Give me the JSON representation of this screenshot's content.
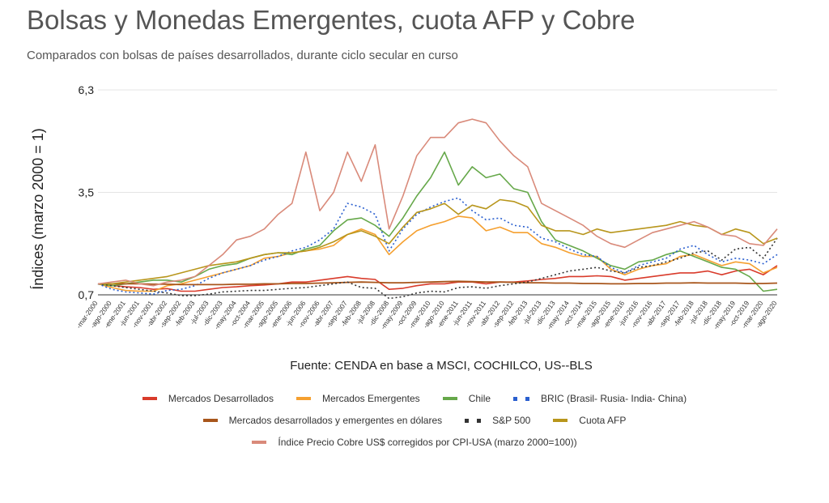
{
  "title": "Bolsas y Monedas Emergentes, cuota AFP y Cobre",
  "subtitle": "Comparados con bolsas de países desarrollados, durante ciclo secular en curso",
  "source": "Fuente: CENDA en base a MSCI, COCHILCO, US--BLS",
  "chart_data": {
    "type": "line",
    "ylabel": "Índices (marzo 2000 = 1)",
    "xlabel": "",
    "ylim": [
      0.7,
      6.3
    ],
    "yticks": [
      "0,7",
      "3,5",
      "6,3"
    ],
    "ytick_values": [
      0.7,
      3.5,
      6.3
    ],
    "grid": true,
    "legend_position": "bottom",
    "x_tick_labels": [
      "-mar-2000",
      "-ago-2000",
      "-ene-2001",
      "-jun-2001",
      "-nov-2001",
      "-abr-2002",
      "-sep-2002",
      "-feb-2003",
      "-jul-2003",
      "-dic-2003",
      "-may-2004",
      "-oct-2004",
      "-mar-2005",
      "-ago-2005",
      "-ene-2006",
      "-jun-2006",
      "-nov-2006",
      "-abr-2007",
      "-sep-2007",
      "-feb-2008",
      "-jul-2008",
      "-dic-2008",
      "-may-2009",
      "-oct-2009",
      "-mar-2010",
      "-ago-2010",
      "-ene-2011",
      "-jun-2011",
      "-nov-2011",
      "-abr-2012",
      "-sep-2012",
      "-feb-2013",
      "-jul-2013",
      "-dic-2013",
      "-may-2014",
      "-oct-2014",
      "-mar-2015",
      "-ago-2015",
      "-ene-2016",
      "-jun-2016",
      "-nov-2016",
      "-abr-2017",
      "-sep-2017",
      "-feb-2018",
      "-jul-2018",
      "-dic-2018",
      "-may-2019",
      "-oct-2019",
      "-mar-2020",
      "-ago-2020"
    ],
    "series": [
      {
        "name": "Mercados Desarrollados",
        "color": "#d93b2b",
        "style": "solid",
        "width": 1.6,
        "values": [
          1.0,
          0.96,
          0.92,
          0.9,
          0.85,
          0.87,
          0.8,
          0.8,
          0.85,
          0.9,
          0.92,
          0.95,
          0.97,
          1.0,
          1.05,
          1.05,
          1.1,
          1.15,
          1.2,
          1.15,
          1.12,
          0.85,
          0.88,
          0.95,
          1.0,
          1.0,
          1.05,
          1.05,
          1.0,
          1.05,
          1.05,
          1.08,
          1.12,
          1.15,
          1.2,
          1.2,
          1.22,
          1.2,
          1.1,
          1.15,
          1.2,
          1.25,
          1.3,
          1.3,
          1.35,
          1.25,
          1.35,
          1.4,
          1.25,
          1.5
        ]
      },
      {
        "name": "Mercados Emergentes",
        "color": "#f5a030",
        "style": "solid",
        "width": 1.6,
        "values": [
          1.0,
          0.9,
          0.82,
          0.8,
          0.8,
          0.95,
          1.0,
          1.1,
          1.2,
          1.3,
          1.4,
          1.5,
          1.7,
          1.75,
          1.85,
          1.9,
          1.95,
          2.05,
          2.35,
          2.5,
          2.35,
          1.8,
          2.15,
          2.45,
          2.6,
          2.7,
          2.85,
          2.8,
          2.45,
          2.55,
          2.4,
          2.4,
          2.1,
          2.0,
          1.85,
          1.75,
          1.75,
          1.4,
          1.25,
          1.4,
          1.5,
          1.55,
          1.75,
          1.8,
          1.65,
          1.5,
          1.6,
          1.55,
          1.3,
          1.45
        ]
      },
      {
        "name": "Chile",
        "color": "#66a84a",
        "style": "solid",
        "width": 1.6,
        "values": [
          1.0,
          0.95,
          1.0,
          1.05,
          1.1,
          1.1,
          1.05,
          1.2,
          1.4,
          1.5,
          1.55,
          1.7,
          1.8,
          1.85,
          1.8,
          1.95,
          2.05,
          2.45,
          2.75,
          2.8,
          2.6,
          2.3,
          2.8,
          3.4,
          3.9,
          4.6,
          3.7,
          4.2,
          3.9,
          4.0,
          3.6,
          3.5,
          2.7,
          2.2,
          2.05,
          1.9,
          1.7,
          1.5,
          1.4,
          1.6,
          1.65,
          1.8,
          1.9,
          1.75,
          1.6,
          1.45,
          1.4,
          1.2,
          0.8,
          0.85
        ]
      },
      {
        "name": "BRIC (Brasil- Rusia- India- China)",
        "color": "#2a5fcf",
        "style": "dotted",
        "width": 1.6,
        "values": [
          1.0,
          0.85,
          0.78,
          0.75,
          0.72,
          0.82,
          0.85,
          0.95,
          1.15,
          1.3,
          1.4,
          1.5,
          1.65,
          1.75,
          1.9,
          2.0,
          2.2,
          2.5,
          3.2,
          3.1,
          2.9,
          1.9,
          2.5,
          2.9,
          3.1,
          3.25,
          3.35,
          3.0,
          2.75,
          2.8,
          2.6,
          2.55,
          2.25,
          2.15,
          1.95,
          1.8,
          1.75,
          1.45,
          1.3,
          1.5,
          1.6,
          1.7,
          1.95,
          2.05,
          1.8,
          1.6,
          1.7,
          1.65,
          1.55,
          1.8
        ]
      },
      {
        "name": "Mercados desarrollados y emergentes en dólares",
        "color": "#a8561c",
        "style": "solid",
        "width": 1.8,
        "values": [
          1.0,
          1.0,
          1.0,
          1.0,
          0.99,
          0.99,
          0.98,
          0.98,
          0.98,
          0.98,
          0.99,
          0.99,
          1.0,
          1.0,
          1.01,
          1.01,
          1.02,
          1.03,
          1.04,
          1.05,
          1.04,
          1.03,
          1.03,
          1.04,
          1.05,
          1.06,
          1.07,
          1.06,
          1.05,
          1.05,
          1.04,
          1.03,
          1.03,
          1.02,
          1.02,
          1.01,
          1.01,
          1.0,
          1.0,
          1.01,
          1.01,
          1.02,
          1.02,
          1.03,
          1.02,
          1.02,
          1.02,
          1.01,
          1.01,
          1.02
        ]
      },
      {
        "name": "S&P 500",
        "color": "#333333",
        "style": "dotted",
        "width": 1.6,
        "values": [
          1.0,
          0.95,
          0.9,
          0.85,
          0.8,
          0.75,
          0.68,
          0.68,
          0.72,
          0.78,
          0.8,
          0.82,
          0.82,
          0.85,
          0.88,
          0.9,
          0.95,
          1.0,
          1.05,
          0.9,
          0.88,
          0.6,
          0.65,
          0.75,
          0.8,
          0.78,
          0.9,
          0.92,
          0.88,
          0.95,
          1.0,
          1.05,
          1.15,
          1.25,
          1.35,
          1.4,
          1.45,
          1.35,
          1.3,
          1.45,
          1.5,
          1.6,
          1.7,
          1.85,
          1.9,
          1.65,
          1.95,
          2.0,
          1.7,
          2.25
        ]
      },
      {
        "name": "Cuota AFP",
        "color": "#b8961c",
        "style": "solid",
        "width": 1.6,
        "values": [
          1.0,
          1.0,
          1.05,
          1.1,
          1.15,
          1.2,
          1.3,
          1.4,
          1.5,
          1.55,
          1.6,
          1.7,
          1.8,
          1.85,
          1.85,
          1.9,
          2.0,
          2.15,
          2.35,
          2.45,
          2.3,
          2.1,
          2.55,
          2.95,
          3.05,
          3.2,
          2.9,
          3.15,
          3.05,
          3.3,
          3.25,
          3.1,
          2.6,
          2.45,
          2.45,
          2.35,
          2.5,
          2.4,
          2.45,
          2.5,
          2.55,
          2.6,
          2.7,
          2.6,
          2.55,
          2.35,
          2.5,
          2.4,
          2.1,
          2.25
        ]
      },
      {
        "name": "Índice Precio Cobre US$ corregidos por CPI-USA (marzo 2000=100))",
        "color": "#d98a7a",
        "style": "solid",
        "width": 1.6,
        "values": [
          1.0,
          1.05,
          1.1,
          1.0,
          0.95,
          1.05,
          1.1,
          1.2,
          1.5,
          1.8,
          2.2,
          2.3,
          2.5,
          2.9,
          3.2,
          4.6,
          3.0,
          3.5,
          4.6,
          3.8,
          4.8,
          2.5,
          3.4,
          4.5,
          5.0,
          5.0,
          5.4,
          5.5,
          5.4,
          4.9,
          4.5,
          4.2,
          3.2,
          3.0,
          2.8,
          2.6,
          2.3,
          2.1,
          2.0,
          2.2,
          2.4,
          2.5,
          2.6,
          2.7,
          2.55,
          2.35,
          2.3,
          2.1,
          2.05,
          2.5
        ]
      }
    ]
  }
}
